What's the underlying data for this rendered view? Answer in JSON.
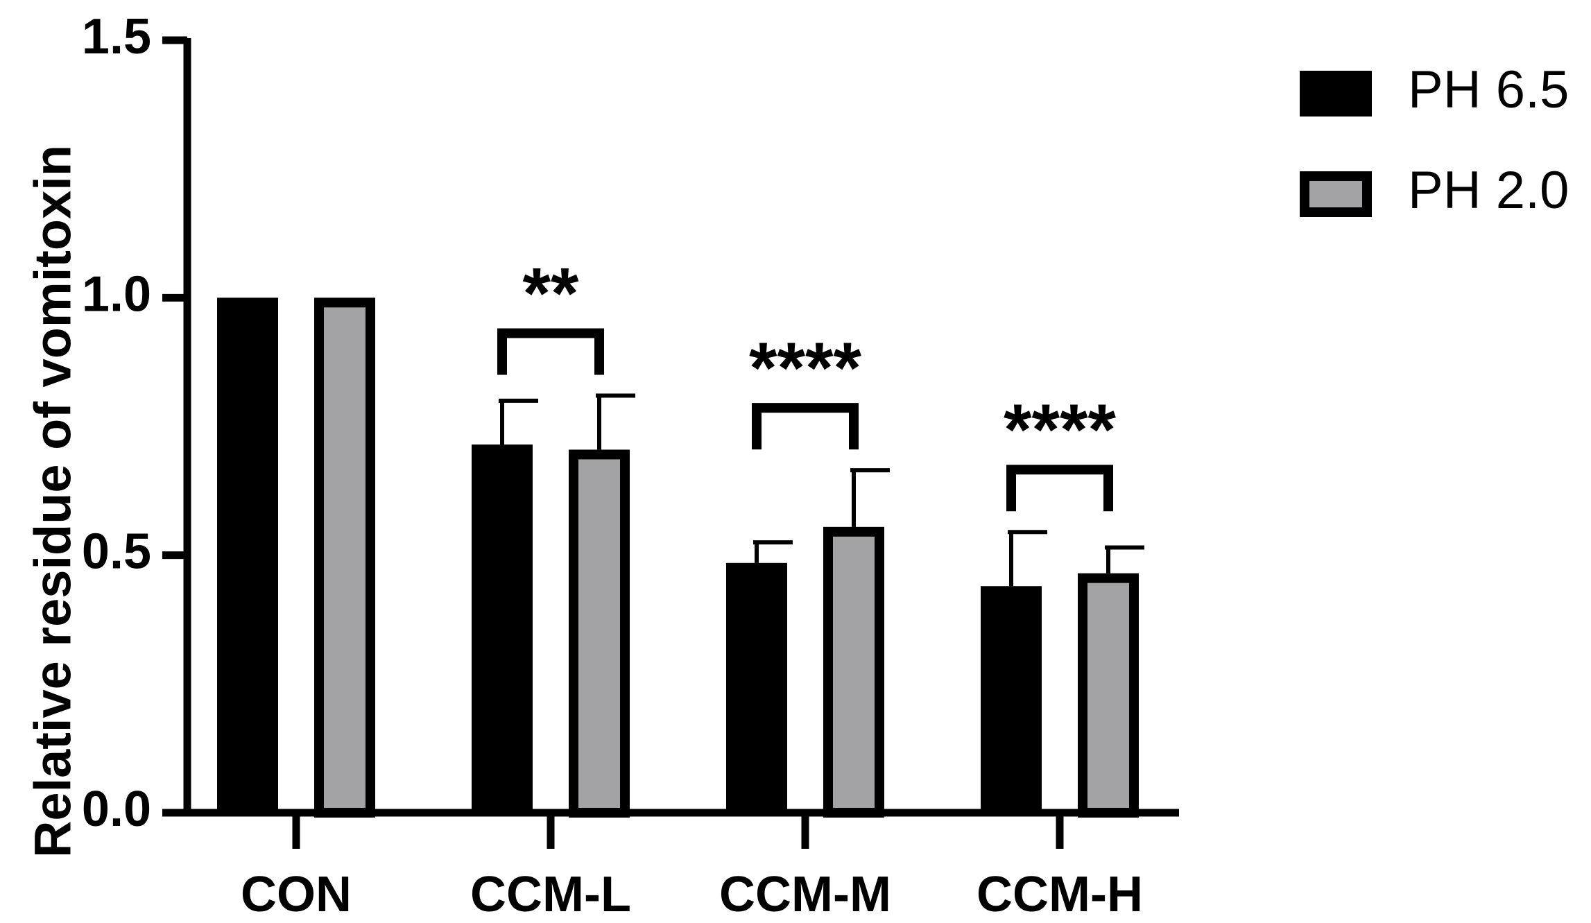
{
  "chart_data": {
    "type": "bar",
    "title": "",
    "xlabel": "",
    "ylabel": "Relative residue of vomitoxin",
    "ylim": [
      0,
      1.5
    ],
    "yticks": [
      0.0,
      0.5,
      1.0,
      1.5
    ],
    "ytick_labels": [
      "0.0",
      "0.5",
      "1.0",
      "1.5"
    ],
    "categories": [
      "CON",
      "CCM-L",
      "CCM-M",
      "CCM-H"
    ],
    "series": [
      {
        "name": "PH 6.5",
        "color": "#000000",
        "values": [
          1.0,
          0.715,
          0.485,
          0.44
        ],
        "errors": [
          0,
          0.085,
          0.04,
          0.105
        ]
      },
      {
        "name": "PH 2.0",
        "color": "#a3a3a6",
        "values": [
          1.0,
          0.705,
          0.555,
          0.465
        ],
        "errors": [
          0,
          0.105,
          0.11,
          0.05
        ]
      }
    ],
    "significance": [
      {
        "category": "CCM-L",
        "label": "**"
      },
      {
        "category": "CCM-M",
        "label": "****"
      },
      {
        "category": "CCM-H",
        "label": "****"
      }
    ],
    "legend": {
      "position": "top-right"
    },
    "grid": false
  }
}
